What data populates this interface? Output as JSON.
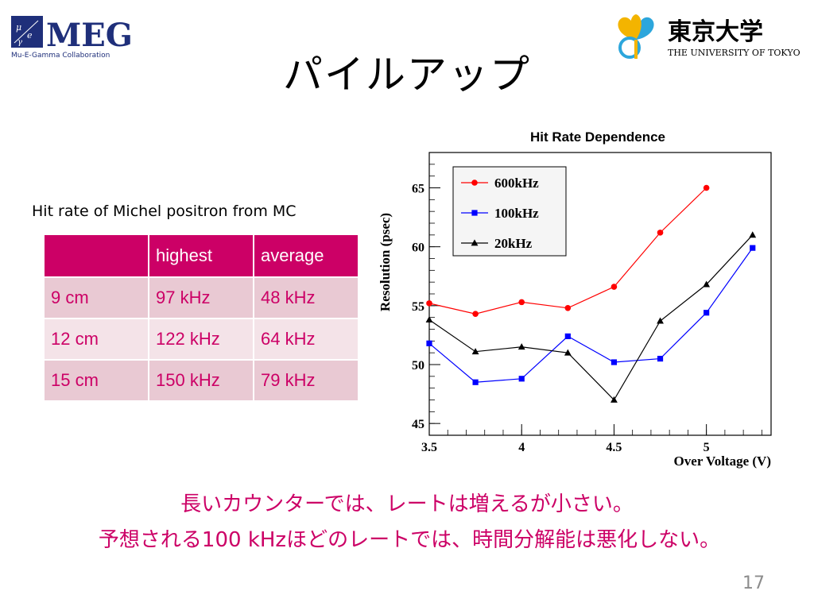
{
  "slide": {
    "title": "パイルアップ",
    "page_number": "17",
    "meg_logo_text": "MEG",
    "meg_logo_subtitle": "Mu-E-Gamma Collaboration",
    "utokyo_logo_text": "東京大学",
    "utokyo_logo_subtitle": "THE UNIVERSITY OF TOKYO"
  },
  "table": {
    "caption": "Hit rate of Michel positron from MC",
    "headers": [
      "",
      "highest",
      "average"
    ],
    "rows": [
      [
        "9 cm",
        "97 kHz",
        "48 kHz"
      ],
      [
        "12 cm",
        "122 kHz",
        "64 kHz"
      ],
      [
        "15 cm",
        "150 kHz",
        "79 kHz"
      ]
    ]
  },
  "colors": {
    "accent": "#cc0066",
    "table_header": "#cc0066",
    "table_row_odd": "#e9c9d3",
    "table_row_even": "#f4e3e8",
    "series_600": "#ff0000",
    "series_100": "#0000ff",
    "series_20": "#000000"
  },
  "chart_data": {
    "type": "line",
    "title": "Hit Rate Dependence",
    "xlabel": "Over Voltage (V)",
    "ylabel": "Resolution (psec)",
    "xlim": [
      3.5,
      5.35
    ],
    "ylim": [
      44,
      68
    ],
    "x_ticks": [
      "3.5",
      "4",
      "4.5",
      "5"
    ],
    "y_ticks": [
      "45",
      "50",
      "55",
      "60",
      "65"
    ],
    "grid": false,
    "legend_position": "top-left",
    "series": [
      {
        "name": "600kHz",
        "marker": "circle",
        "color": "#ff0000",
        "x": [
          3.5,
          3.75,
          4.0,
          4.25,
          4.5,
          4.75,
          5.0
        ],
        "y": [
          55.2,
          54.3,
          55.3,
          54.8,
          56.6,
          61.2,
          65.0
        ]
      },
      {
        "name": "100kHz",
        "marker": "square",
        "color": "#0000ff",
        "x": [
          3.5,
          3.75,
          4.0,
          4.25,
          4.5,
          4.75,
          5.0,
          5.25
        ],
        "y": [
          51.8,
          48.5,
          48.8,
          52.4,
          50.2,
          50.5,
          54.4,
          59.9
        ]
      },
      {
        "name": "20kHz",
        "marker": "triangle",
        "color": "#000000",
        "x": [
          3.5,
          3.75,
          4.0,
          4.25,
          4.5,
          4.75,
          5.0,
          5.25
        ],
        "y": [
          53.8,
          51.1,
          51.5,
          51.0,
          47.0,
          53.7,
          56.8,
          61.0
        ]
      }
    ]
  },
  "messages": {
    "line1": "長いカウンターでは、レートは増えるが小さい。",
    "line2": "予想される100 kHzほどのレートでは、時間分解能は悪化しない。"
  }
}
